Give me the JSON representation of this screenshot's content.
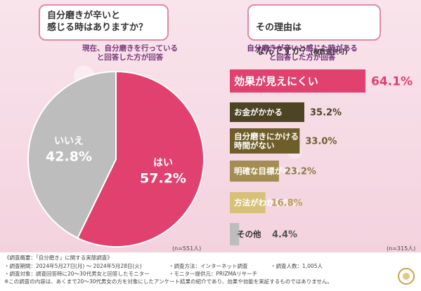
{
  "left_question": {
    "text": "自分磨きが辛いと\n感じる時はありますか？",
    "note": "現在、自分磨きを行っている\nと回答した方が回答",
    "n": "(n=551人)"
  },
  "right_question": {
    "line1": "その理由は",
    "line2_main": "なんですか？",
    "line2_small": "(複数選択可)",
    "note": "自分磨きが辛いと感じた時がある\nと回答した方が回答",
    "n": "(n=315人)"
  },
  "colors": {
    "yes": "#e0416f",
    "no": "#bdbdbd",
    "bar_top": "#e0416f",
    "bar_2": "#4d4424",
    "bar_3": "#6f5e2a",
    "bar_4": "#a38d52",
    "bar_5": "#d7c178",
    "bar_6": "#bdbdbd"
  },
  "chart_data": [
    {
      "type": "pie",
      "slices": [
        {
          "label": "はい",
          "value": 57.2,
          "display": "57.2%"
        },
        {
          "label": "いいえ",
          "value": 42.8,
          "display": "42.8%"
        }
      ]
    },
    {
      "type": "bar",
      "orientation": "horizontal",
      "categories": [
        "効果が見えにくい",
        "お金がかかる",
        "自分磨きにかける\n時間がない",
        "明確な目標がない",
        "方法がわからない",
        "その他"
      ],
      "values": [
        64.1,
        35.2,
        33.0,
        23.2,
        16.8,
        4.4
      ],
      "labels": [
        "64.1%",
        "35.2%",
        "33.0%",
        "23.2%",
        "16.8%",
        "4.4%"
      ]
    }
  ],
  "footer": {
    "overview": "《調査概要：「自分磨き」に関する実態調査》",
    "period": "・調査期間：2024年5月27日(月) 〜 2024年5月28日(火)",
    "method": "・調査方法：インターネット調査",
    "count": "・調査人数：1,005人",
    "target": "・調査対象：調査回答時に20〜30代男女と回答したモニター",
    "provider": "・モニター提供元：PRIZMAリサーチ",
    "disclaimer": "※この調査の内容は、あくまで20〜30代男女の方を対象にしたアンケート結果の紹介であり、効果や効能を実証するものではありません。"
  }
}
